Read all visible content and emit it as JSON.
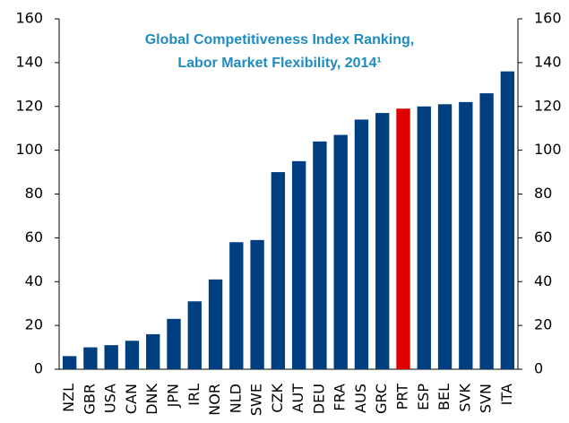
{
  "chart_data": {
    "type": "bar",
    "title": [
      "Global Competitiveness Index Ranking,",
      "Labor Market Flexibility, 2014¹"
    ],
    "categories": [
      "NZL",
      "GBR",
      "USA",
      "CAN",
      "DNK",
      "JPN",
      "IRL",
      "NOR",
      "NLD",
      "SWE",
      "CZK",
      "AUT",
      "DEU",
      "FRA",
      "AUS",
      "GRC",
      "PRT",
      "ESP",
      "BEL",
      "SVK",
      "SVN",
      "ITA"
    ],
    "values": [
      6,
      10,
      11,
      13,
      16,
      23,
      31,
      41,
      58,
      59,
      90,
      95,
      104,
      107,
      114,
      117,
      119,
      120,
      121,
      122,
      126,
      136
    ],
    "colors": [
      "#003f7f",
      "#003f7f",
      "#003f7f",
      "#003f7f",
      "#003f7f",
      "#003f7f",
      "#003f7f",
      "#003f7f",
      "#003f7f",
      "#003f7f",
      "#003f7f",
      "#003f7f",
      "#003f7f",
      "#003f7f",
      "#003f7f",
      "#003f7f",
      "#e00000",
      "#003f7f",
      "#003f7f",
      "#003f7f",
      "#003f7f",
      "#003f7f"
    ],
    "ylim": [
      0,
      160
    ],
    "yticks": [
      0,
      20,
      40,
      60,
      80,
      100,
      120,
      140,
      160
    ],
    "y2lim": [
      0,
      160
    ],
    "y2ticks": [
      0,
      20,
      40,
      60,
      80,
      100,
      120,
      140,
      160
    ],
    "grid": false
  }
}
